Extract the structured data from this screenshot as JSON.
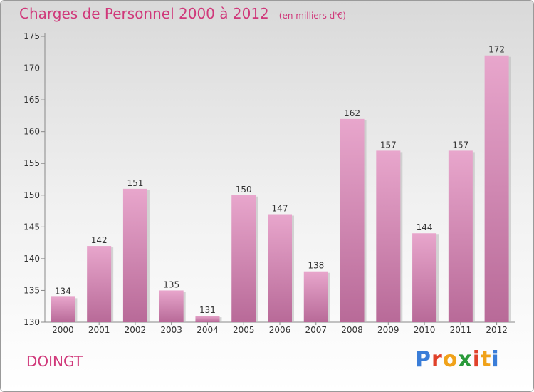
{
  "header": {
    "title": "Charges de Personnel 2000 à 2012",
    "subtitle": "(en milliers d'€)"
  },
  "footer": {
    "city": "DOINGT",
    "brand": "Proxiti",
    "brand_colors": [
      "#3a7dd8",
      "#e0412a",
      "#f0a21a",
      "#2a9a3a",
      "#e0412a",
      "#f0a21a",
      "#3a7dd8"
    ]
  },
  "chart_data": {
    "type": "bar",
    "categories": [
      "2000",
      "2001",
      "2002",
      "2003",
      "2004",
      "2005",
      "2006",
      "2007",
      "2008",
      "2009",
      "2010",
      "2011",
      "2012"
    ],
    "values": [
      134,
      142,
      151,
      135,
      131,
      150,
      147,
      138,
      162,
      157,
      144,
      157,
      172
    ],
    "ylim": [
      130,
      175
    ],
    "yticks": [
      130,
      135,
      140,
      145,
      150,
      155,
      160,
      165,
      170,
      175
    ],
    "bar_color": "#d882b0",
    "grid": false
  }
}
